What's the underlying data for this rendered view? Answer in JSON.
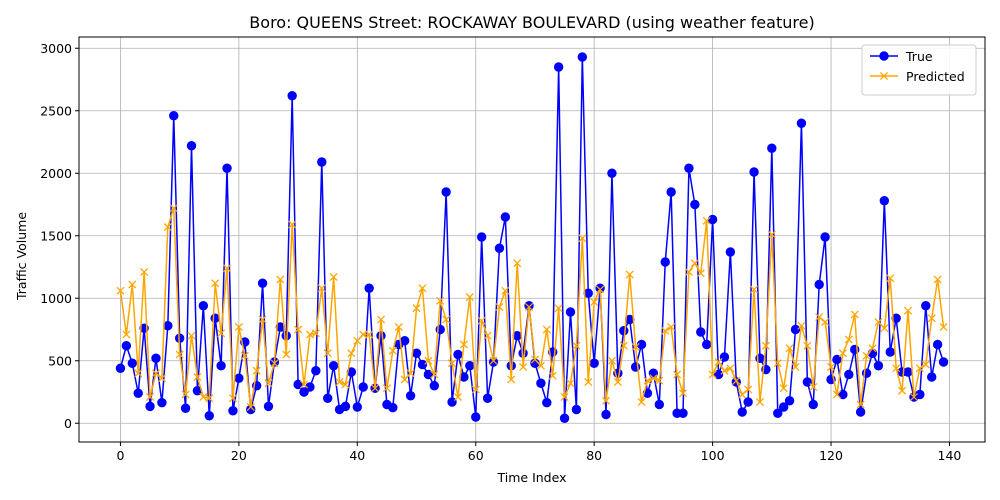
{
  "chart_data": {
    "type": "line",
    "title": "Boro: QUEENS Street: ROCKAWAY BOULEVARD (using weather feature)",
    "xlabel": "Time Index",
    "ylabel": "Traffic Volume",
    "xlim": [
      -7,
      146
    ],
    "ylim": [
      -150,
      3090
    ],
    "xticks": [
      "0",
      "20",
      "40",
      "60",
      "80",
      "100",
      "120",
      "140"
    ],
    "yticks": [
      "0",
      "500",
      "1000",
      "1500",
      "2000",
      "2500",
      "3000"
    ],
    "grid": true,
    "legend_position": "top-right",
    "x": [
      0,
      1,
      2,
      3,
      4,
      5,
      6,
      7,
      8,
      9,
      10,
      11,
      12,
      13,
      14,
      15,
      16,
      17,
      18,
      19,
      20,
      21,
      22,
      23,
      24,
      25,
      26,
      27,
      28,
      29,
      30,
      31,
      32,
      33,
      34,
      35,
      36,
      37,
      38,
      39,
      40,
      41,
      42,
      43,
      44,
      45,
      46,
      47,
      48,
      49,
      50,
      51,
      52,
      53,
      54,
      55,
      56,
      57,
      58,
      59,
      60,
      61,
      62,
      63,
      64,
      65,
      66,
      67,
      68,
      69,
      70,
      71,
      72,
      73,
      74,
      75,
      76,
      77,
      78,
      79,
      80,
      81,
      82,
      83,
      84,
      85,
      86,
      87,
      88,
      89,
      90,
      91,
      92,
      93,
      94,
      95,
      96,
      97,
      98,
      99,
      100,
      101,
      102,
      103,
      104,
      105,
      106,
      107,
      108,
      109,
      110,
      111,
      112,
      113,
      114,
      115,
      116,
      117,
      118,
      119,
      120,
      121,
      122,
      123,
      124,
      125,
      126,
      127,
      128,
      129,
      130,
      131,
      132,
      133,
      134,
      135,
      136,
      137,
      138,
      139
    ],
    "series": [
      {
        "name": "True",
        "color": "#0000ff",
        "marker": "circle",
        "values": [
          440,
          620,
          480,
          240,
          760,
          135,
          520,
          165,
          780,
          2460,
          680,
          120,
          2220,
          260,
          940,
          60,
          840,
          460,
          2040,
          100,
          360,
          650,
          110,
          300,
          1120,
          135,
          490,
          770,
          700,
          2620,
          310,
          250,
          290,
          420,
          2090,
          200,
          460,
          110,
          135,
          410,
          130,
          290,
          1080,
          280,
          700,
          150,
          125,
          630,
          660,
          220,
          560,
          470,
          390,
          300,
          750,
          1850,
          170,
          550,
          370,
          460,
          50,
          1490,
          200,
          490,
          1400,
          1650,
          460,
          700,
          560,
          940,
          480,
          320,
          165,
          570,
          2850,
          40,
          890,
          110,
          2930,
          1040,
          480,
          1080,
          70,
          2000,
          400,
          740,
          830,
          450,
          630,
          240,
          400,
          150,
          1290,
          1850,
          80,
          80,
          2040,
          1750,
          730,
          630,
          1630,
          390,
          530,
          1370,
          330,
          90,
          170,
          2010,
          520,
          430,
          2200,
          80,
          130,
          180,
          750,
          2400,
          330,
          150,
          1110,
          1490,
          350,
          510,
          230,
          390,
          590,
          90,
          400,
          560,
          460,
          1780,
          570,
          840,
          410,
          410,
          210,
          230,
          940,
          370,
          630,
          490
        ]
      },
      {
        "name": "Predicted",
        "color": "#ffa500",
        "marker": "x",
        "values": [
          1060,
          710,
          1110,
          400,
          1210,
          210,
          400,
          360,
          1570,
          1720,
          550,
          230,
          700,
          370,
          210,
          200,
          1120,
          720,
          1240,
          200,
          770,
          540,
          130,
          420,
          830,
          320,
          480,
          1150,
          550,
          1590,
          750,
          310,
          710,
          720,
          1080,
          560,
          1170,
          330,
          310,
          560,
          660,
          710,
          710,
          280,
          830,
          280,
          580,
          770,
          350,
          400,
          920,
          1080,
          500,
          390,
          980,
          830,
          480,
          210,
          630,
          1010,
          270,
          820,
          700,
          500,
          930,
          1060,
          350,
          1280,
          450,
          930,
          510,
          460,
          750,
          380,
          920,
          210,
          320,
          620,
          1480,
          330,
          970,
          1070,
          180,
          500,
          330,
          620,
          1190,
          610,
          170,
          340,
          360,
          340,
          740,
          770,
          390,
          240,
          1210,
          1280,
          1200,
          1620,
          390,
          490,
          420,
          440,
          340,
          230,
          270,
          1070,
          170,
          620,
          1510,
          480,
          280,
          600,
          450,
          780,
          620,
          290,
          850,
          810,
          450,
          230,
          560,
          670,
          870,
          150,
          540,
          600,
          810,
          760,
          1160,
          440,
          260,
          900,
          210,
          440,
          470,
          840,
          1150,
          770
        ]
      }
    ]
  }
}
